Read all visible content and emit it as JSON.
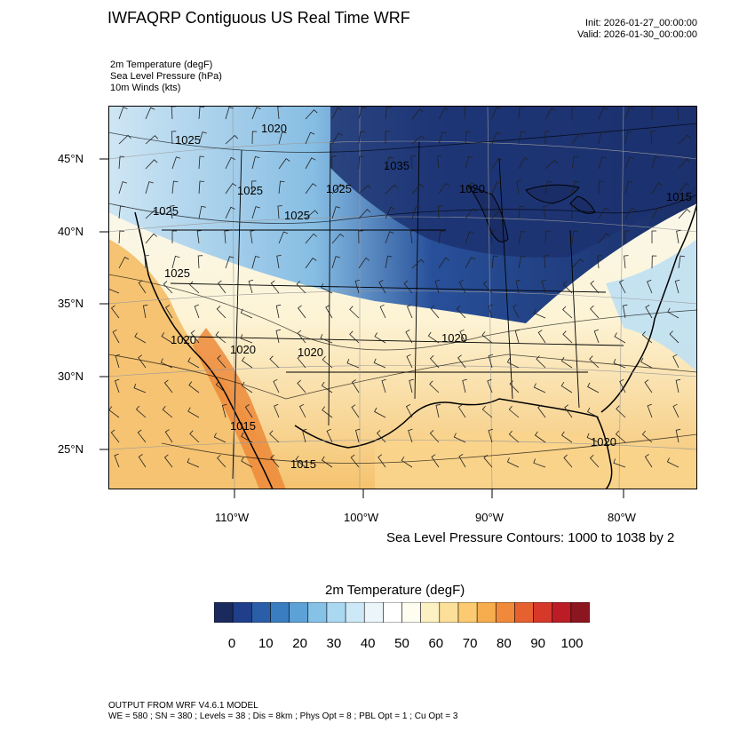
{
  "header": {
    "title": "IWFAQRP Contiguous US Real Time WRF",
    "init": "Init: 2026-01-27_00:00:00",
    "valid": "Valid: 2026-01-30_00:00:00"
  },
  "fields": {
    "temperature": "2m Temperature   (degF)",
    "pressure": "Sea Level Pressure   (hPa)",
    "winds": "10m Winds   (kts)"
  },
  "axes": {
    "lat_labels": [
      "45°N",
      "40°N",
      "35°N",
      "30°N",
      "25°N"
    ],
    "lon_labels": [
      "110°W",
      "100°W",
      "90°W",
      "80°W"
    ]
  },
  "map": {
    "contour_labels": [
      "1020",
      "1025",
      "1035",
      "1025",
      "1020",
      "1025",
      "1025",
      "1025",
      "1015",
      "1025",
      "1020",
      "1020",
      "1020",
      "1020",
      "1015",
      "1015",
      "1020"
    ],
    "colors": {
      "cold": "#1b2f6e",
      "mid": "#9fd0ef",
      "neutral": "#f4f8fa",
      "warm": "#f6c36a",
      "hot": "#ea7b2c",
      "lines": "#000000"
    }
  },
  "contour_note": "Sea Level Pressure Contours: 1000 to 1038 by 2",
  "colorbar": {
    "title": "2m Temperature  (degF)",
    "labels": [
      "0",
      "10",
      "20",
      "30",
      "40",
      "50",
      "60",
      "70",
      "80",
      "90",
      "100"
    ],
    "colors": [
      "#1a2a5c",
      "#203f8a",
      "#2a5ea8",
      "#3a7dc0",
      "#5da2d6",
      "#86c1e6",
      "#abd8f1",
      "#cde8f6",
      "#ebf5fa",
      "#ffffff",
      "#fefdf0",
      "#fdf0c2",
      "#fce09a",
      "#fbca71",
      "#f7ac4e",
      "#f08a3a",
      "#e6612f",
      "#d6392a",
      "#bb1c26",
      "#8c1620"
    ]
  },
  "footer": {
    "line1": "OUTPUT FROM WRF V4.6.1 MODEL",
    "line2": "WE = 580 ; SN = 380 ; Levels = 38 ; Dis = 8km ; Phys Opt = 8 ; PBL Opt = 1 ; Cu Opt = 3"
  }
}
